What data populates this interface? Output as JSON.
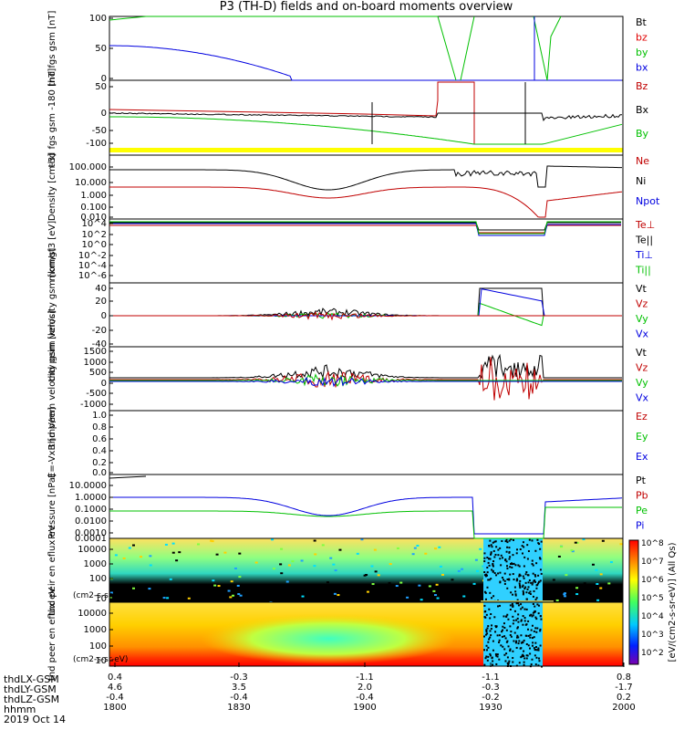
{
  "title": "P3 (TH-D) fields and on-board moments overview",
  "footer": {
    "rows": [
      "thdLX-GSM",
      "thdLY-GSM",
      "thdLZ-GSM",
      "hhmm",
      "2019 Oct 14"
    ]
  },
  "xaxis": {
    "time_ticks": [
      "1800",
      "1830",
      "1900",
      "1930",
      "2000"
    ],
    "x_gsm": [
      "0.4",
      "-0.3",
      "-1.1",
      "-1.1",
      "0.8"
    ],
    "y_gsm": [
      "4.6",
      "3.5",
      "2.0",
      "-0.3",
      "-1.7"
    ],
    "z_gsm": [
      "-0.4",
      "-0.4",
      "-0.4",
      "-0.2",
      "0.2"
    ]
  },
  "colorbar_label": "[eV/(cm2-s-sr-eV)] (All Qs)",
  "colorbar_ticks": [
    "10^8",
    "10^7",
    "10^6",
    "10^5",
    "10^4",
    "10^3",
    "10^2"
  ],
  "chart_data": [
    {
      "type": "line",
      "ylabel": "thd fgs gsm [nT]",
      "ylim": [
        -100,
        100
      ],
      "yticks": [
        "100",
        "50",
        "0",
        "-50",
        "-100"
      ],
      "legend": [
        {
          "label": "Bt",
          "color": "#000000"
        },
        {
          "label": "bz",
          "color": "#e00000"
        },
        {
          "label": "by",
          "color": "#00c000"
        },
        {
          "label": "bx",
          "color": "#0000e0"
        }
      ]
    },
    {
      "type": "line",
      "ylabel": "thd fgs gsm -180 [nT]",
      "ylim": [
        -125,
        50
      ],
      "yticks": [
        "50",
        "0",
        "-50",
        "-100"
      ],
      "legend": [
        {
          "label": "Bz",
          "color": "#c00000"
        },
        {
          "label": "Bx",
          "color": "#000000"
        },
        {
          "label": "By",
          "color": "#00c000"
        }
      ]
    },
    {
      "type": "line",
      "ylabel": "Density [cm-3]",
      "scale": "log",
      "yticks": [
        "100.000",
        "10.000",
        "1.000",
        "0.100",
        "0.010",
        "0.001"
      ],
      "legend": [
        {
          "label": "Ne",
          "color": "#c00000"
        },
        {
          "label": "Ni",
          "color": "#000000"
        },
        {
          "label": "Npot",
          "color": "#0000e0"
        }
      ]
    },
    {
      "type": "line",
      "ylabel": "momgt3 [eV]",
      "scale": "log",
      "yticks": [
        "10^4",
        "10^2",
        "10^0",
        "10^-2",
        "10^-4",
        "10^-6",
        "10^-8",
        "10^-10"
      ],
      "legend": [
        {
          "label": "Te⊥",
          "color": "#c00000"
        },
        {
          "label": "Te||",
          "color": "#000000"
        },
        {
          "label": "Ti⊥",
          "color": "#0000e0"
        },
        {
          "label": "Ti||",
          "color": "#00c000"
        }
      ]
    },
    {
      "type": "line",
      "ylabel": "thd peim velocity gsm [km/s]",
      "ylim": [
        -40,
        40
      ],
      "yticks": [
        "40",
        "20",
        "0",
        "-20",
        "-40"
      ],
      "legend": [
        {
          "label": "Vt",
          "color": "#000000"
        },
        {
          "label": "Vz",
          "color": "#c00000"
        },
        {
          "label": "Vy",
          "color": "#00c000"
        },
        {
          "label": "Vx",
          "color": "#0000e0"
        }
      ]
    },
    {
      "type": "line",
      "ylabel": "thd peem velocity gsm [km/s]",
      "ylim": [
        -1200,
        1500
      ],
      "yticks": [
        "1500",
        "1000",
        "500",
        "0",
        "-500",
        "-1000"
      ],
      "legend": [
        {
          "label": "Vt",
          "color": "#000000"
        },
        {
          "label": "Vz",
          "color": "#c00000"
        },
        {
          "label": "Vy",
          "color": "#00c000"
        },
        {
          "label": "Vx",
          "color": "#0000e0"
        }
      ]
    },
    {
      "type": "line",
      "ylabel": "E=-VxB [mV/m]",
      "ylim": [
        0,
        1
      ],
      "yticks": [
        "1.0",
        "0.8",
        "0.6",
        "0.4",
        "0.2",
        "0.0"
      ],
      "legend": [
        {
          "label": "Ez",
          "color": "#c00000"
        },
        {
          "label": "Ey",
          "color": "#00c000"
        },
        {
          "label": "Ex",
          "color": "#0000e0"
        }
      ]
    },
    {
      "type": "line",
      "ylabel": "Pressure [nPa]",
      "scale": "log",
      "yticks": [
        "10.0000",
        "1.0000",
        "0.1000",
        "0.0100",
        "0.0010",
        "0.0001"
      ],
      "legend": [
        {
          "label": "Pt",
          "color": "#000000"
        },
        {
          "label": "Pb",
          "color": "#c00000"
        },
        {
          "label": "Pe",
          "color": "#00c000"
        },
        {
          "label": "Pi",
          "color": "#0000e0"
        }
      ]
    },
    {
      "type": "heatmap",
      "ylabel": "thd peir en eflux eV",
      "units": "(cm2-s-sr-eV)",
      "yticks": [
        "10000",
        "1000",
        "100",
        "10"
      ]
    },
    {
      "type": "heatmap",
      "ylabel": "thd peer en eflux eV",
      "units": "(cm2-s-sr-eV)",
      "yticks": [
        "10000",
        "1000",
        "100",
        "10"
      ]
    }
  ]
}
